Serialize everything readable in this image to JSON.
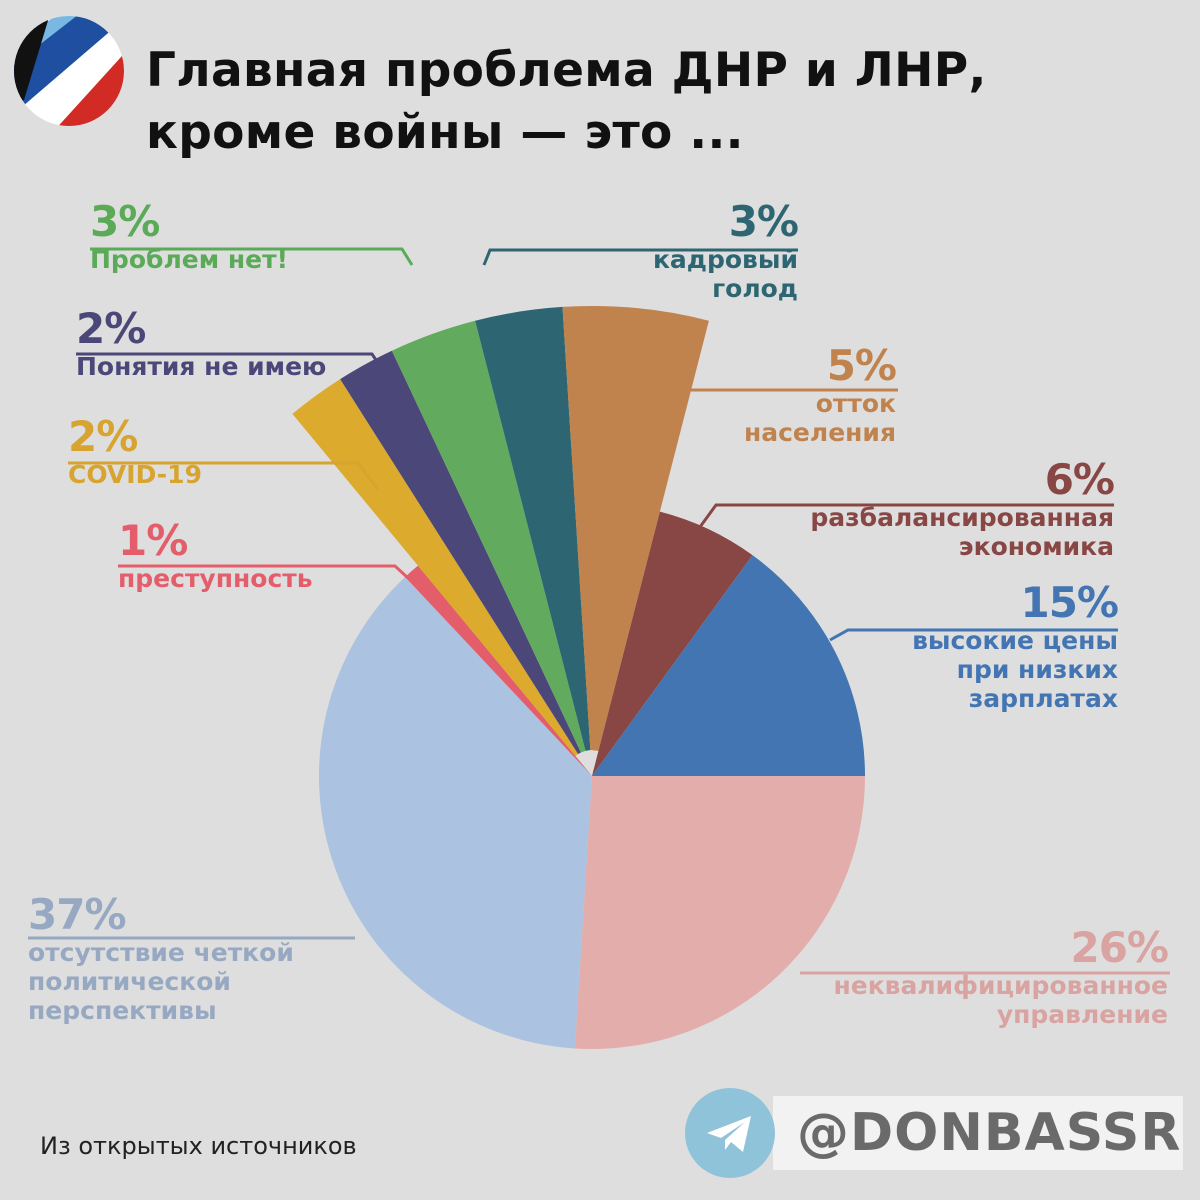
{
  "title": {
    "line1": "Главная проблема ДНР и ЛНР,",
    "line2": "кроме войны — это ..."
  },
  "chart_data": {
    "type": "pie",
    "slices": [
      {
        "key": "unqualified_management",
        "value": 26,
        "percent_label": "26%",
        "label": "неквалифицированное\nуправление",
        "color": "#e2adab",
        "text_color": "#d9a3a1",
        "exploded": false
      },
      {
        "key": "no_political_perspective",
        "value": 37,
        "percent_label": "37%",
        "label": "отсутствие четкой\nполитической\nперспективы",
        "color": "#abc3e0",
        "text_color": "#97a9c2",
        "exploded": false
      },
      {
        "key": "crime",
        "value": 1,
        "percent_label": "1%",
        "label": "преступность",
        "color": "#e45d6b",
        "text_color": "#e45d6b",
        "exploded": false
      },
      {
        "key": "covid",
        "value": 2,
        "percent_label": "2%",
        "label": "COVID-19",
        "color": "#dcaa2c",
        "text_color": "#d8a430",
        "exploded": true
      },
      {
        "key": "no_idea",
        "value": 2,
        "percent_label": "2%",
        "label": "Понятия не имею",
        "color": "#4c4779",
        "text_color": "#4c4779",
        "exploded": true
      },
      {
        "key": "no_problems",
        "value": 3,
        "percent_label": "3%",
        "label": "Проблем нет!",
        "color": "#62ab5e",
        "text_color": "#5aaa58",
        "exploded": true
      },
      {
        "key": "staff_shortage",
        "value": 3,
        "percent_label": "3%",
        "label": "кадровый\nголод",
        "color": "#2d6672",
        "text_color": "#2d6672",
        "exploded": true
      },
      {
        "key": "population_outflow",
        "value": 5,
        "percent_label": "5%",
        "label": "отток\nнаселения",
        "color": "#c0834e",
        "text_color": "#c0834e",
        "exploded": true
      },
      {
        "key": "unbalanced_economy",
        "value": 6,
        "percent_label": "6%",
        "label": "разбалансированная\nэкономика",
        "color": "#884645",
        "text_color": "#884645",
        "exploded": false
      },
      {
        "key": "high_prices_low_wages",
        "value": 15,
        "percent_label": "15%",
        "label": "высокие цены\nпри низких\nзарплатах",
        "color": "#4375b3",
        "text_color": "#4375b3",
        "exploded": false
      }
    ]
  },
  "footer": {
    "source": "Из открытых источников",
    "handle": "@DONBASSR"
  },
  "colors": {
    "background": "#dedede",
    "title": "#111111",
    "flag_white": "#ffffff",
    "flag_blue": "#1e4fa0",
    "flag_red": "#d22b26",
    "flag_black": "#111111",
    "flag_lightblue": "#78b8e3",
    "telegram": "#8fc3d9"
  },
  "icons": {
    "logo": "flag-circle-icon",
    "telegram": "telegram-plane-icon"
  }
}
